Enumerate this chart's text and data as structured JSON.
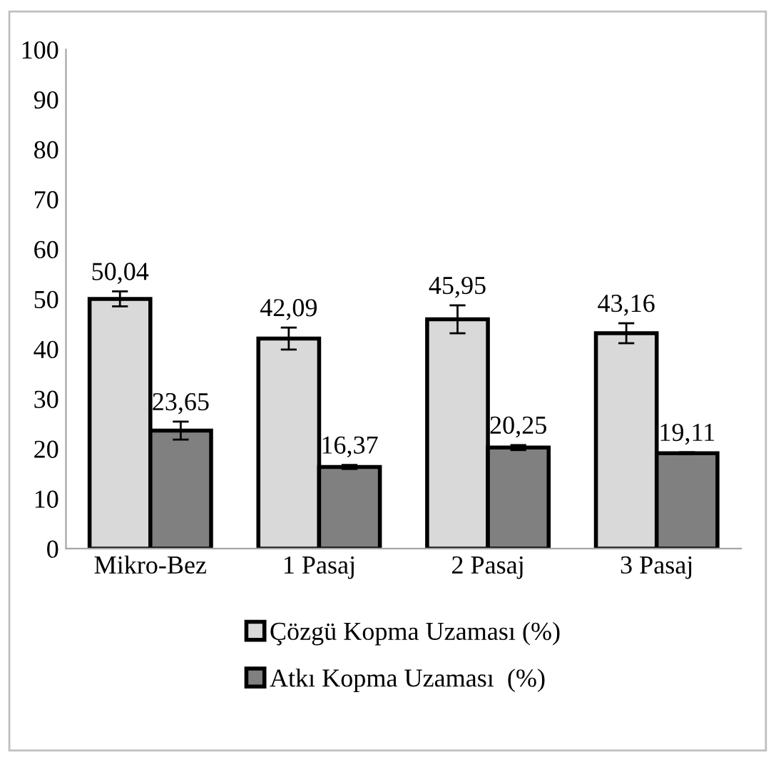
{
  "chart_data": {
    "type": "bar",
    "categories": [
      "Mikro-Bez",
      "1 Pasaj",
      "2 Pasaj",
      "3 Pasaj"
    ],
    "series": [
      {
        "name": "Çözgü Kopma Uzaması (%)",
        "color": "#d9d9d9",
        "values": [
          50.04,
          42.09,
          45.95,
          43.16
        ],
        "errors": [
          1.5,
          2.2,
          2.8,
          2.0
        ],
        "value_labels": [
          "50,04",
          "42,09",
          "45,95",
          "43,16"
        ]
      },
      {
        "name": "Atkı Kopma Uzaması  (%)",
        "color": "#808080",
        "values": [
          23.65,
          16.37,
          20.25,
          19.11
        ],
        "errors": [
          1.8,
          0.4,
          0.5,
          0.2
        ],
        "value_labels": [
          "23,65",
          "16,37",
          "20,25",
          "19,11"
        ]
      }
    ],
    "ylim": [
      0,
      100
    ],
    "yticks": [
      0,
      10,
      20,
      30,
      40,
      50,
      60,
      70,
      80,
      90,
      100
    ],
    "grid": false,
    "legend": "bottom"
  }
}
